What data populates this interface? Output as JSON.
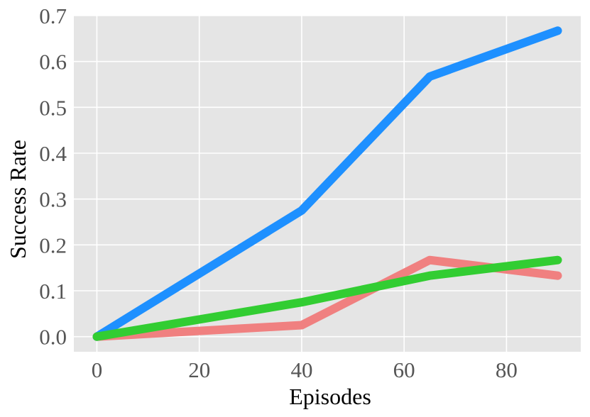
{
  "chart_data": {
    "type": "line",
    "title": "",
    "xlabel": "Episodes",
    "ylabel": "Success Rate",
    "xlim": [
      -4.5,
      94.5
    ],
    "ylim": [
      -0.033,
      0.7
    ],
    "x_ticks": [
      0,
      20,
      40,
      60,
      80
    ],
    "x_tick_labels": [
      "0",
      "20",
      "40",
      "60",
      "80"
    ],
    "y_ticks": [
      0.0,
      0.1,
      0.2,
      0.3,
      0.4,
      0.5,
      0.6,
      0.7
    ],
    "y_tick_labels": [
      "0.0",
      "0.1",
      "0.2",
      "0.3",
      "0.4",
      "0.5",
      "0.6",
      "0.7"
    ],
    "grid": true,
    "legend": "none",
    "background_color": "#e5e5e5",
    "series": [
      {
        "color": "#f08080",
        "x": [
          0,
          40,
          65,
          90
        ],
        "y": [
          0.0,
          0.025,
          0.167,
          0.133
        ]
      },
      {
        "color": "#1e90ff",
        "x": [
          0,
          40,
          65,
          90
        ],
        "y": [
          0.0,
          0.275,
          0.567,
          0.667
        ]
      },
      {
        "color": "#32cd32",
        "x": [
          0,
          40,
          65,
          90
        ],
        "y": [
          0.0,
          0.075,
          0.133,
          0.167
        ]
      }
    ]
  }
}
